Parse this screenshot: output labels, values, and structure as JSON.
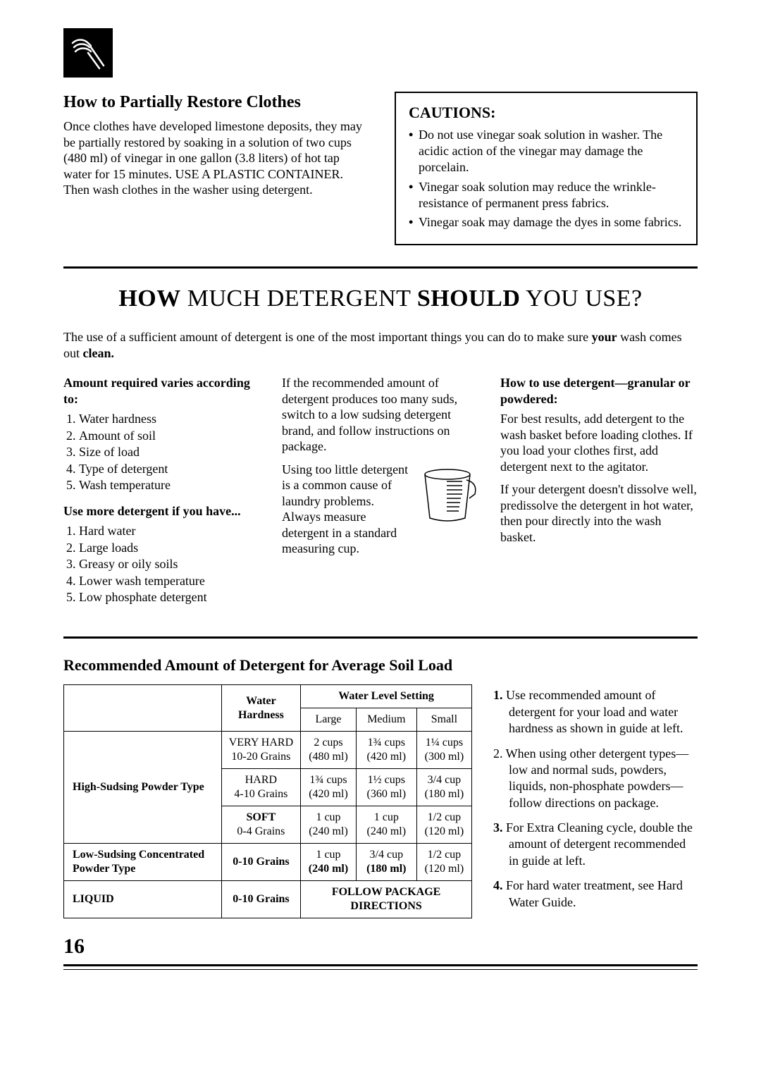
{
  "icon_name": "hand-scrubbing-icon",
  "restore": {
    "heading": "How to Partially Restore Clothes",
    "body": "Once clothes have developed limestone deposits, they may be partially restored by soaking in a solution of two cups (480 ml) of vinegar in one gallon (3.8 liters) of hot tap water for 15 minutes. USE A PLASTIC CONTAINER. Then wash clothes in the washer using detergent."
  },
  "cautions": {
    "heading": "CAUTIONS:",
    "items": [
      "Do not use vinegar soak solution in washer. The acidic action of the vinegar may damage the porcelain.",
      "Vinegar soak solution may reduce the wrinkle-resistance of permanent press fabrics.",
      "Vinegar soak may damage the dyes in some fabrics."
    ]
  },
  "main_heading_html": [
    "HOW",
    " MUCH DETERGENT ",
    "SHOULD",
    " YOU USE?"
  ],
  "intro": "The use of a sufficient amount of detergent is one of the most important things you can do to make sure your wash comes out clean.",
  "col1": {
    "h1": "Amount required varies according to:",
    "list1": [
      "Water hardness",
      "Amount of soil",
      "Size of load",
      "Type of detergent",
      "Wash temperature"
    ],
    "h2": "Use more detergent if you have...",
    "list2": [
      "Hard water",
      "Large loads",
      "Greasy or oily soils",
      "Lower wash temperature",
      "Low phosphate detergent"
    ]
  },
  "col2": {
    "p1": "If the recommended amount of detergent produces too many suds, switch to a low sudsing detergent brand, and follow instructions on package.",
    "p2": "Using too little detergent is a common cause of laundry problems.    Always measure detergent in a standard measuring cup."
  },
  "col3": {
    "h": "How to use detergent—granular or powdered:",
    "p1": "For best results, add detergent to the wash basket before loading clothes. If you load your clothes first, add detergent next to the agitator.",
    "p2": "If your detergent doesn't dissolve well, predissolve the detergent in hot water, then pour directly into the wash basket."
  },
  "table_heading": "Recommended Amount of Detergent for Average Soil Load",
  "table": {
    "water_level_label": "Water Level Setting",
    "hardness_label": "Water Hardness",
    "cols": [
      "Large",
      "Medium",
      "Small"
    ],
    "groups": [
      {
        "name": "High-Sudsing Powder Type",
        "rows": [
          {
            "hard": [
              "VERY HARD",
              "10-20 Grains"
            ],
            "vals": [
              [
                "2 cups",
                "(480 ml)"
              ],
              [
                "1¾ cups",
                "(420 ml)"
              ],
              [
                "1¼ cups",
                "(300 ml)"
              ]
            ]
          },
          {
            "hard": [
              "HARD",
              "4-10 Grains"
            ],
            "vals": [
              [
                "1¾ cups",
                "(420 ml)"
              ],
              [
                "1½ cups",
                "(360 ml)"
              ],
              [
                "3/4 cup",
                "(180 ml)"
              ]
            ]
          },
          {
            "hard": [
              "SOFT",
              "0-4 Grains"
            ],
            "vals": [
              [
                "1 cup",
                "(240 ml)"
              ],
              [
                "1 cup",
                "(240 ml)"
              ],
              [
                "1/2 cup",
                "(120 ml)"
              ]
            ]
          }
        ]
      },
      {
        "name": "Low-Sudsing Concentrated Powder Type",
        "rows": [
          {
            "hard": [
              "",
              "0-10 Grains"
            ],
            "vals": [
              [
                "1 cup",
                "(240 ml)"
              ],
              [
                "3/4 cup",
                "(180 ml)"
              ],
              [
                "1/2 cup",
                "(120 ml)"
              ]
            ]
          }
        ]
      },
      {
        "name": "LIQUID",
        "rows": [
          {
            "hard": [
              "",
              "0-10 Grains"
            ],
            "span": "FOLLOW PACKAGE DIRECTIONS"
          }
        ]
      }
    ]
  },
  "notes": [
    "Use recommended amount of detergent for your load and water hardness as shown in guide at left.",
    "When using other detergent types—low and normal suds, powders, liquids, non-phosphate powders—follow directions on package.",
    "For Extra Cleaning cycle, double the amount of detergent recommended in guide at left.",
    "For hard water treatment, see Hard Water Guide."
  ],
  "page_number": "16"
}
